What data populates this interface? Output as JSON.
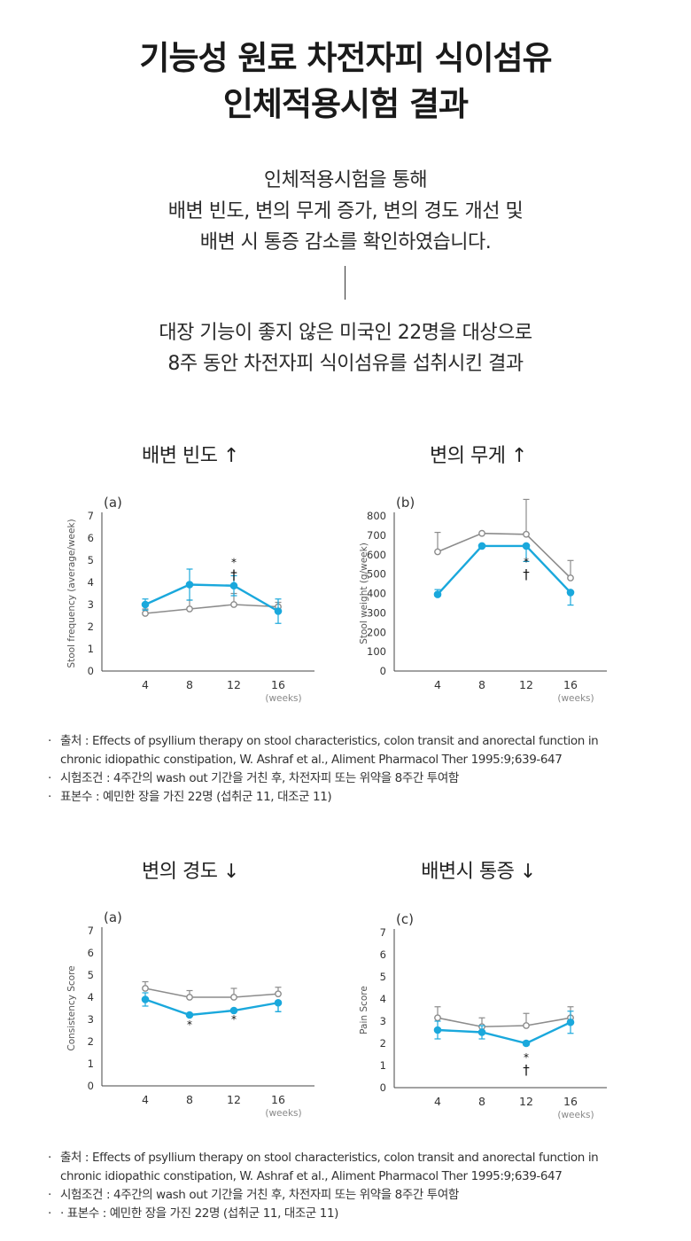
{
  "header": {
    "title_line1": "기능성 원료 차전자피 식이섬유",
    "title_line2": "인체적용시험 결과",
    "intro_lines": [
      "인체적용시험을 통해",
      "배변 빈도, 변의 무게 증가, 변의 경도 개선 및",
      "배변 시 통증 감소를 확인하였습니다."
    ],
    "target_lines": [
      "대장 기능이 좋지 않은 미국인 22명을 대상으로",
      "8주 동안 차전자피 식이섬유를 섭취시킨 결과"
    ]
  },
  "colors": {
    "treatment": "#1aa8dc",
    "control": "#8c8c8c",
    "axis": "#444444"
  },
  "chart_data": [
    {
      "id": "frequency",
      "type": "line",
      "heading": "배변 빈도 ↑",
      "panel": "(a)",
      "ylabel": "Stool frequency (average/week)",
      "x": [
        4,
        8,
        12,
        16
      ],
      "x_unit": "(weeks)",
      "ylim": [
        0,
        7
      ],
      "yticks": [
        0,
        1,
        2,
        3,
        4,
        5,
        6,
        7
      ],
      "series": [
        {
          "role": "control",
          "values": [
            2.6,
            2.8,
            3.0,
            2.9
          ],
          "err": [
            0.2,
            0.4,
            0.5,
            0.2
          ]
        },
        {
          "role": "treatment",
          "values": [
            3.0,
            3.9,
            3.85,
            2.7
          ],
          "err": [
            0.25,
            0.7,
            0.45,
            0.55
          ]
        }
      ],
      "annotations": [
        {
          "x": 12,
          "y": 4.75,
          "lines": [
            "*",
            "†"
          ]
        }
      ]
    },
    {
      "id": "weight",
      "type": "line",
      "heading": "변의 무게 ↑",
      "panel": "(b)",
      "ylabel": "Stool weight (g/week)",
      "x": [
        4,
        8,
        12,
        16
      ],
      "x_unit": "(weeks)",
      "ylim": [
        0,
        800
      ],
      "yticks": [
        0,
        100,
        200,
        300,
        400,
        500,
        600,
        700,
        800
      ],
      "series": [
        {
          "role": "control",
          "values": [
            615,
            710,
            705,
            480
          ],
          "err": [
            100,
            0,
            180,
            90
          ]
        },
        {
          "role": "treatment",
          "values": [
            395,
            645,
            645,
            405
          ],
          "err": [
            25,
            0,
            80,
            65
          ]
        }
      ],
      "annotations": [
        {
          "x": 12,
          "y": 545,
          "lines": [
            "*",
            "†"
          ]
        }
      ]
    },
    {
      "id": "consistency",
      "type": "line",
      "heading": "변의 경도 ↓",
      "panel": "(a)",
      "ylabel": "Consistency Score",
      "x": [
        4,
        8,
        12,
        16
      ],
      "x_unit": "(weeks)",
      "ylim": [
        0,
        7
      ],
      "yticks": [
        0,
        1,
        2,
        3,
        4,
        5,
        6,
        7
      ],
      "series": [
        {
          "role": "control",
          "values": [
            4.4,
            4.0,
            4.0,
            4.15
          ],
          "err": [
            0.3,
            0.3,
            0.4,
            0.3
          ]
        },
        {
          "role": "treatment",
          "values": [
            3.9,
            3.2,
            3.4,
            3.75
          ],
          "err": [
            0.3,
            0,
            0,
            0.4
          ]
        }
      ],
      "annotations": [
        {
          "x": 8,
          "y": 2.6,
          "lines": [
            "*"
          ]
        },
        {
          "x": 12,
          "y": 2.85,
          "lines": [
            "*"
          ]
        }
      ]
    },
    {
      "id": "pain",
      "type": "line",
      "heading": "배변시 통증 ↓",
      "panel": "(c)",
      "ylabel": "Pain Score",
      "x": [
        4,
        8,
        12,
        16
      ],
      "x_unit": "(weeks)",
      "ylim": [
        0,
        7
      ],
      "yticks": [
        0,
        1,
        2,
        3,
        4,
        5,
        6,
        7
      ],
      "series": [
        {
          "role": "control",
          "values": [
            3.15,
            2.75,
            2.8,
            3.15
          ],
          "err": [
            0.5,
            0.4,
            0.55,
            0.5
          ]
        },
        {
          "role": "treatment",
          "values": [
            2.6,
            2.5,
            2.0,
            2.95
          ],
          "err": [
            0.4,
            0.3,
            0.1,
            0.5
          ]
        }
      ],
      "annotations": [
        {
          "x": 12,
          "y": 1.2,
          "lines": [
            "*",
            "†"
          ]
        }
      ]
    }
  ],
  "notes_top": {
    "source_1": "출처 : Effects of psyllium therapy on stool characteristics, colon transit and anorectal function in",
    "source_2": "chronic idiopathic constipation, W. Ashraf et al., Aliment Pharmacol Ther 1995:9;639-647",
    "condition": "시험조건 : 4주간의 wash out 기간을 거친 후, 차전자피 또는 위약을 8주간 투여함",
    "sample": "표본수 : 예민한 장을 가진 22명 (섭취군 11, 대조군 11)"
  },
  "notes_bottom": {
    "source_1": "출처 : Effects of psyllium therapy on stool characteristics, colon transit and anorectal function in",
    "source_2": "chronic idiopathic constipation, W. Ashraf et al., Aliment Pharmacol Ther 1995:9;639-647",
    "condition": "시험조건 : 4주간의 wash out 기간을 거친 후, 차전자피 또는 위약을 8주간 투여함",
    "sample": "· 표본수 : 예민한 장을 가진 22명 (섭취군 11, 대조군 11)"
  }
}
